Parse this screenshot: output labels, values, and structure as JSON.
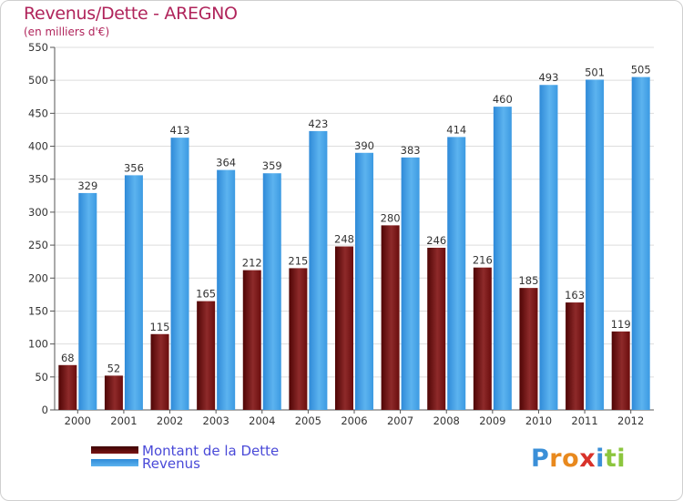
{
  "header": {
    "title": "Revenus/Dette - AREGNO",
    "subtitle": "(en milliers d'€)"
  },
  "legend": {
    "debt_label": "Montant de la Dette",
    "revenue_label": "Revenus"
  },
  "logo": {
    "text": "Proxiti"
  },
  "colors": {
    "debt": "#7a1414",
    "revenue": "#3a9ae0",
    "title": "#b0245b",
    "legend_text": "#4a4ad8"
  },
  "chart_data": {
    "type": "bar",
    "title": "Revenus/Dette - AREGNO",
    "subtitle": "(en milliers d'€)",
    "xlabel": "",
    "ylabel": "",
    "ylim": [
      0,
      550
    ],
    "yticks": [
      0,
      50,
      100,
      150,
      200,
      250,
      300,
      350,
      400,
      450,
      500,
      550
    ],
    "grid": true,
    "legend_position": "bottom-left",
    "categories": [
      "2000",
      "2001",
      "2002",
      "2003",
      "2004",
      "2005",
      "2006",
      "2007",
      "2008",
      "2009",
      "2010",
      "2011",
      "2012"
    ],
    "series": [
      {
        "name": "Montant de la Dette",
        "values": [
          68,
          52,
          115,
          165,
          212,
          215,
          248,
          280,
          246,
          216,
          185,
          163,
          119
        ]
      },
      {
        "name": "Revenus",
        "values": [
          329,
          356,
          413,
          364,
          359,
          423,
          390,
          383,
          414,
          460,
          493,
          501,
          505
        ]
      }
    ]
  }
}
